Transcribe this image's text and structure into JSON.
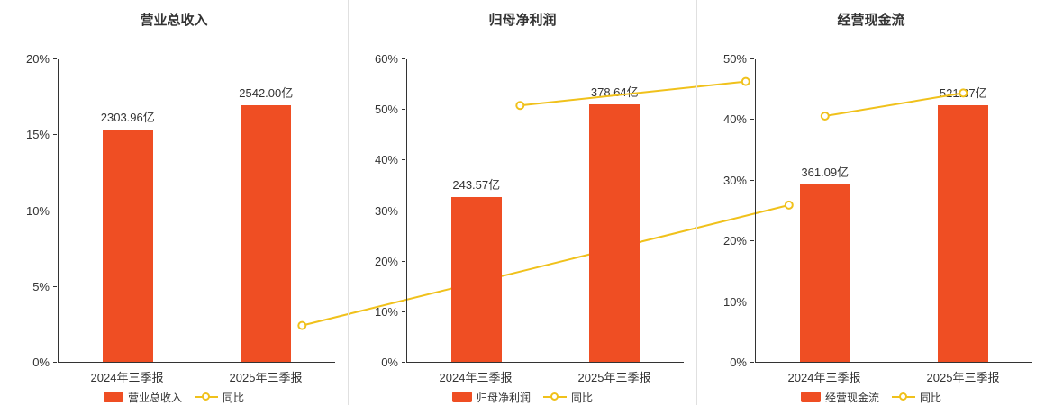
{
  "colors": {
    "bar": "#ef4e23",
    "line": "#f0c11b",
    "axis": "#333333",
    "text": "#333333",
    "divider": "#e0e0e0",
    "background": "#ffffff"
  },
  "chart_data": [
    {
      "type": "bar",
      "title": "营业总收入",
      "categories": [
        "2024年三季报",
        "2025年三季报"
      ],
      "bar_series": {
        "name": "营业总收入",
        "value_labels": [
          "2303.96亿",
          "2542.00亿"
        ],
        "display_pct": [
          15.3,
          16.9
        ]
      },
      "line_series": {
        "name": "同比",
        "values_pct": [
          2.4,
          10.33
        ]
      },
      "y_axis": {
        "min": 0,
        "max": 20,
        "tick_labels": [
          "0%",
          "5%",
          "10%",
          "15%",
          "20%"
        ]
      },
      "legend": [
        "营业总收入",
        "同比"
      ],
      "legend_position": "bottom",
      "grid": false
    },
    {
      "type": "bar",
      "title": "归母净利润",
      "categories": [
        "2024年三季报",
        "2025年三季报"
      ],
      "bar_series": {
        "name": "归母净利润",
        "value_labels": [
          "243.57亿",
          "378.64亿"
        ],
        "display_pct": [
          32.5,
          50.9
        ]
      },
      "line_series": {
        "name": "同比",
        "values_pct": [
          50.7,
          55.45
        ]
      },
      "y_axis": {
        "min": 0,
        "max": 60,
        "tick_labels": [
          "0%",
          "10%",
          "20%",
          "30%",
          "40%",
          "50%",
          "60%"
        ]
      },
      "legend": [
        "归母净利润",
        "同比"
      ],
      "legend_position": "bottom",
      "grid": false
    },
    {
      "type": "bar",
      "title": "经营现金流",
      "categories": [
        "2024年三季报",
        "2025年三季报"
      ],
      "bar_series": {
        "name": "经营现金流",
        "value_labels": [
          "361.09亿",
          "521.07亿"
        ],
        "display_pct": [
          29.3,
          42.3
        ]
      },
      "line_series": {
        "name": "同比",
        "values_pct": [
          40.5,
          44.3
        ]
      },
      "y_axis": {
        "min": 0,
        "max": 50,
        "tick_labels": [
          "0%",
          "10%",
          "20%",
          "30%",
          "40%",
          "50%"
        ]
      },
      "legend": [
        "经营现金流",
        "同比"
      ],
      "legend_position": "bottom",
      "grid": false
    }
  ]
}
